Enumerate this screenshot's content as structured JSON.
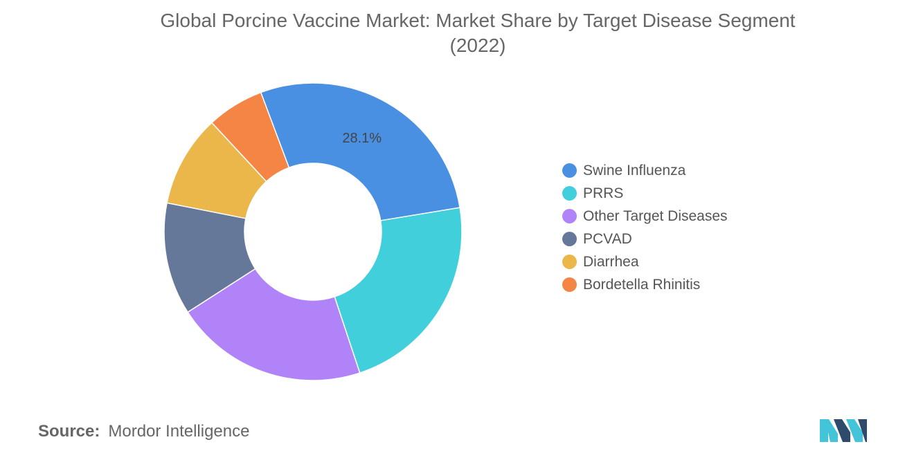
{
  "title_line1": "Global Porcine Vaccine Market: Market Share by Target Disease Segment",
  "title_line2": "(2022)",
  "chart_data": {
    "type": "pie",
    "style": "donut",
    "title": "Global Porcine Vaccine Market: Market Share by Target Disease Segment (2022)",
    "unit": "%",
    "legend_position": "right",
    "slices": [
      {
        "name": "Swine Influenza",
        "value": 28.1,
        "color": "#4a90e2",
        "label": "28.1%"
      },
      {
        "name": "PRRS",
        "value": 22.5,
        "color": "#41cfdb",
        "label": ""
      },
      {
        "name": "Other Target Diseases",
        "value": 21.0,
        "color": "#b083f8",
        "label": ""
      },
      {
        "name": "PCVAD",
        "value": 12.2,
        "color": "#657899",
        "label": ""
      },
      {
        "name": "Diarrhea",
        "value": 10.0,
        "color": "#ebb74b",
        "label": ""
      },
      {
        "name": "Bordetella Rhinitis",
        "value": 6.2,
        "color": "#f58545",
        "label": ""
      }
    ]
  },
  "source": {
    "label": "Source:",
    "text": "Mordor Intelligence"
  },
  "logo": {
    "icon": "mordor-intelligence-logo-icon",
    "colors": [
      "#2f4a6b",
      "#43c4d9"
    ]
  }
}
